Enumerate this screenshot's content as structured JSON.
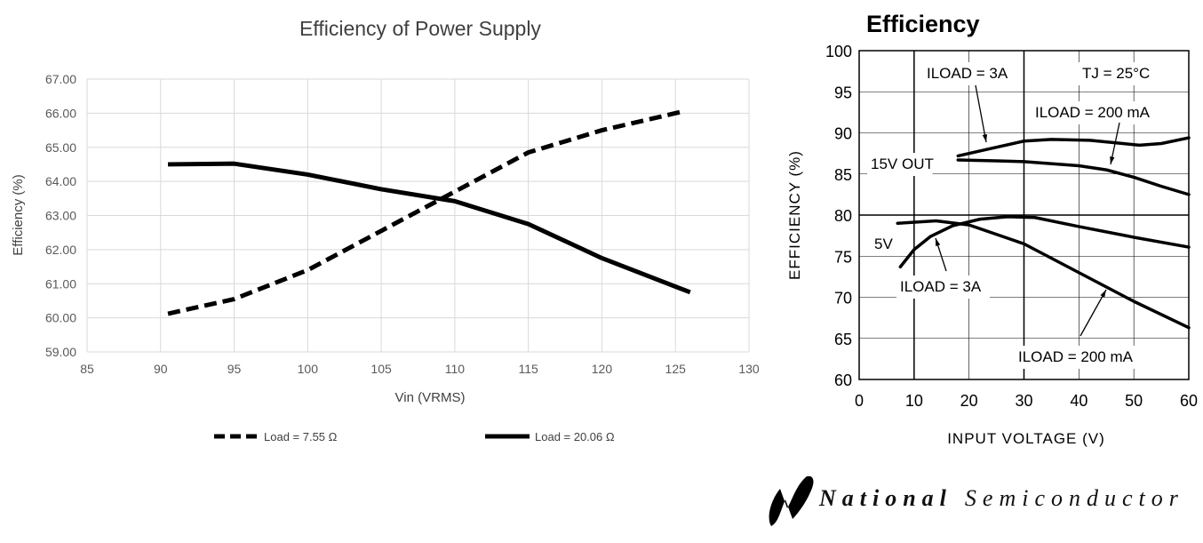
{
  "chart_data": [
    {
      "type": "line",
      "title": "Efficiency of Power Supply",
      "xlabel": "Vin (VRMS)",
      "ylabel": "Efficiency (%)",
      "xlim": [
        85,
        130
      ],
      "ylim": [
        59,
        67
      ],
      "xticks": [
        "85",
        "90",
        "95",
        "100",
        "105",
        "110",
        "115",
        "120",
        "125",
        "130"
      ],
      "yticks": [
        "59.00",
        "60.00",
        "61.00",
        "62.00",
        "63.00",
        "64.00",
        "65.00",
        "66.00",
        "67.00"
      ],
      "grid": true,
      "legend_position": "bottom",
      "series": [
        {
          "name": "Load = 7.55 Ω",
          "style": "dashed",
          "x": [
            90.5,
            95,
            100,
            105,
            110,
            115,
            120,
            125.5
          ],
          "y": [
            60.12,
            60.55,
            61.4,
            62.55,
            63.7,
            64.85,
            65.5,
            66.05
          ]
        },
        {
          "name": "Load = 20.06 Ω",
          "style": "solid",
          "x": [
            90.5,
            95,
            100,
            105,
            110,
            115,
            120,
            126
          ],
          "y": [
            64.5,
            64.52,
            64.2,
            63.77,
            63.42,
            62.75,
            61.75,
            60.75
          ]
        }
      ]
    },
    {
      "type": "line",
      "title": "Efficiency",
      "xlabel": "INPUT VOLTAGE (V)",
      "ylabel": "EFFICIENCY (%)",
      "xlim": [
        0,
        60
      ],
      "ylim": [
        60,
        100
      ],
      "xticks": [
        "0",
        "10",
        "20",
        "30",
        "40",
        "50",
        "60"
      ],
      "yticks": [
        "60",
        "65",
        "70",
        "75",
        "80",
        "85",
        "90",
        "95",
        "100"
      ],
      "grid": true,
      "annotations": {
        "tj": "TJ = 25°C",
        "out15": "15V OUT",
        "out5": "5V",
        "iload3a_top": "ILOAD = 3A",
        "iload200_top": "ILOAD = 200 mA",
        "iload3a_bottom": "ILOAD = 3A",
        "iload200_bottom": "ILOAD = 200 mA"
      },
      "series": [
        {
          "name": "15V OUT, ILOAD = 3A",
          "x": [
            18,
            24,
            30,
            35,
            42,
            48,
            51,
            55,
            60
          ],
          "y": [
            87.2,
            88.1,
            89.0,
            89.2,
            89.1,
            88.7,
            88.5,
            88.7,
            89.4
          ]
        },
        {
          "name": "15V OUT, ILOAD = 200 mA",
          "x": [
            18,
            25,
            30,
            40,
            45,
            50,
            55,
            60
          ],
          "y": [
            86.7,
            86.6,
            86.5,
            86.0,
            85.5,
            84.6,
            83.5,
            82.5
          ]
        },
        {
          "name": "5V, ILOAD = 200 mA",
          "x": [
            7,
            14,
            20,
            30,
            40,
            50,
            60
          ],
          "y": [
            79.0,
            79.3,
            78.8,
            76.5,
            73.0,
            69.5,
            66.3
          ]
        },
        {
          "name": "5V, ILOAD = 3A",
          "x": [
            7.5,
            10,
            13,
            17,
            22,
            27,
            32,
            40,
            50,
            60
          ],
          "y": [
            73.7,
            75.8,
            77.4,
            78.7,
            79.5,
            79.8,
            79.7,
            78.6,
            77.3,
            76.1
          ]
        }
      ]
    }
  ],
  "logo": {
    "text_bold": "National",
    "text": "Semiconductor"
  }
}
